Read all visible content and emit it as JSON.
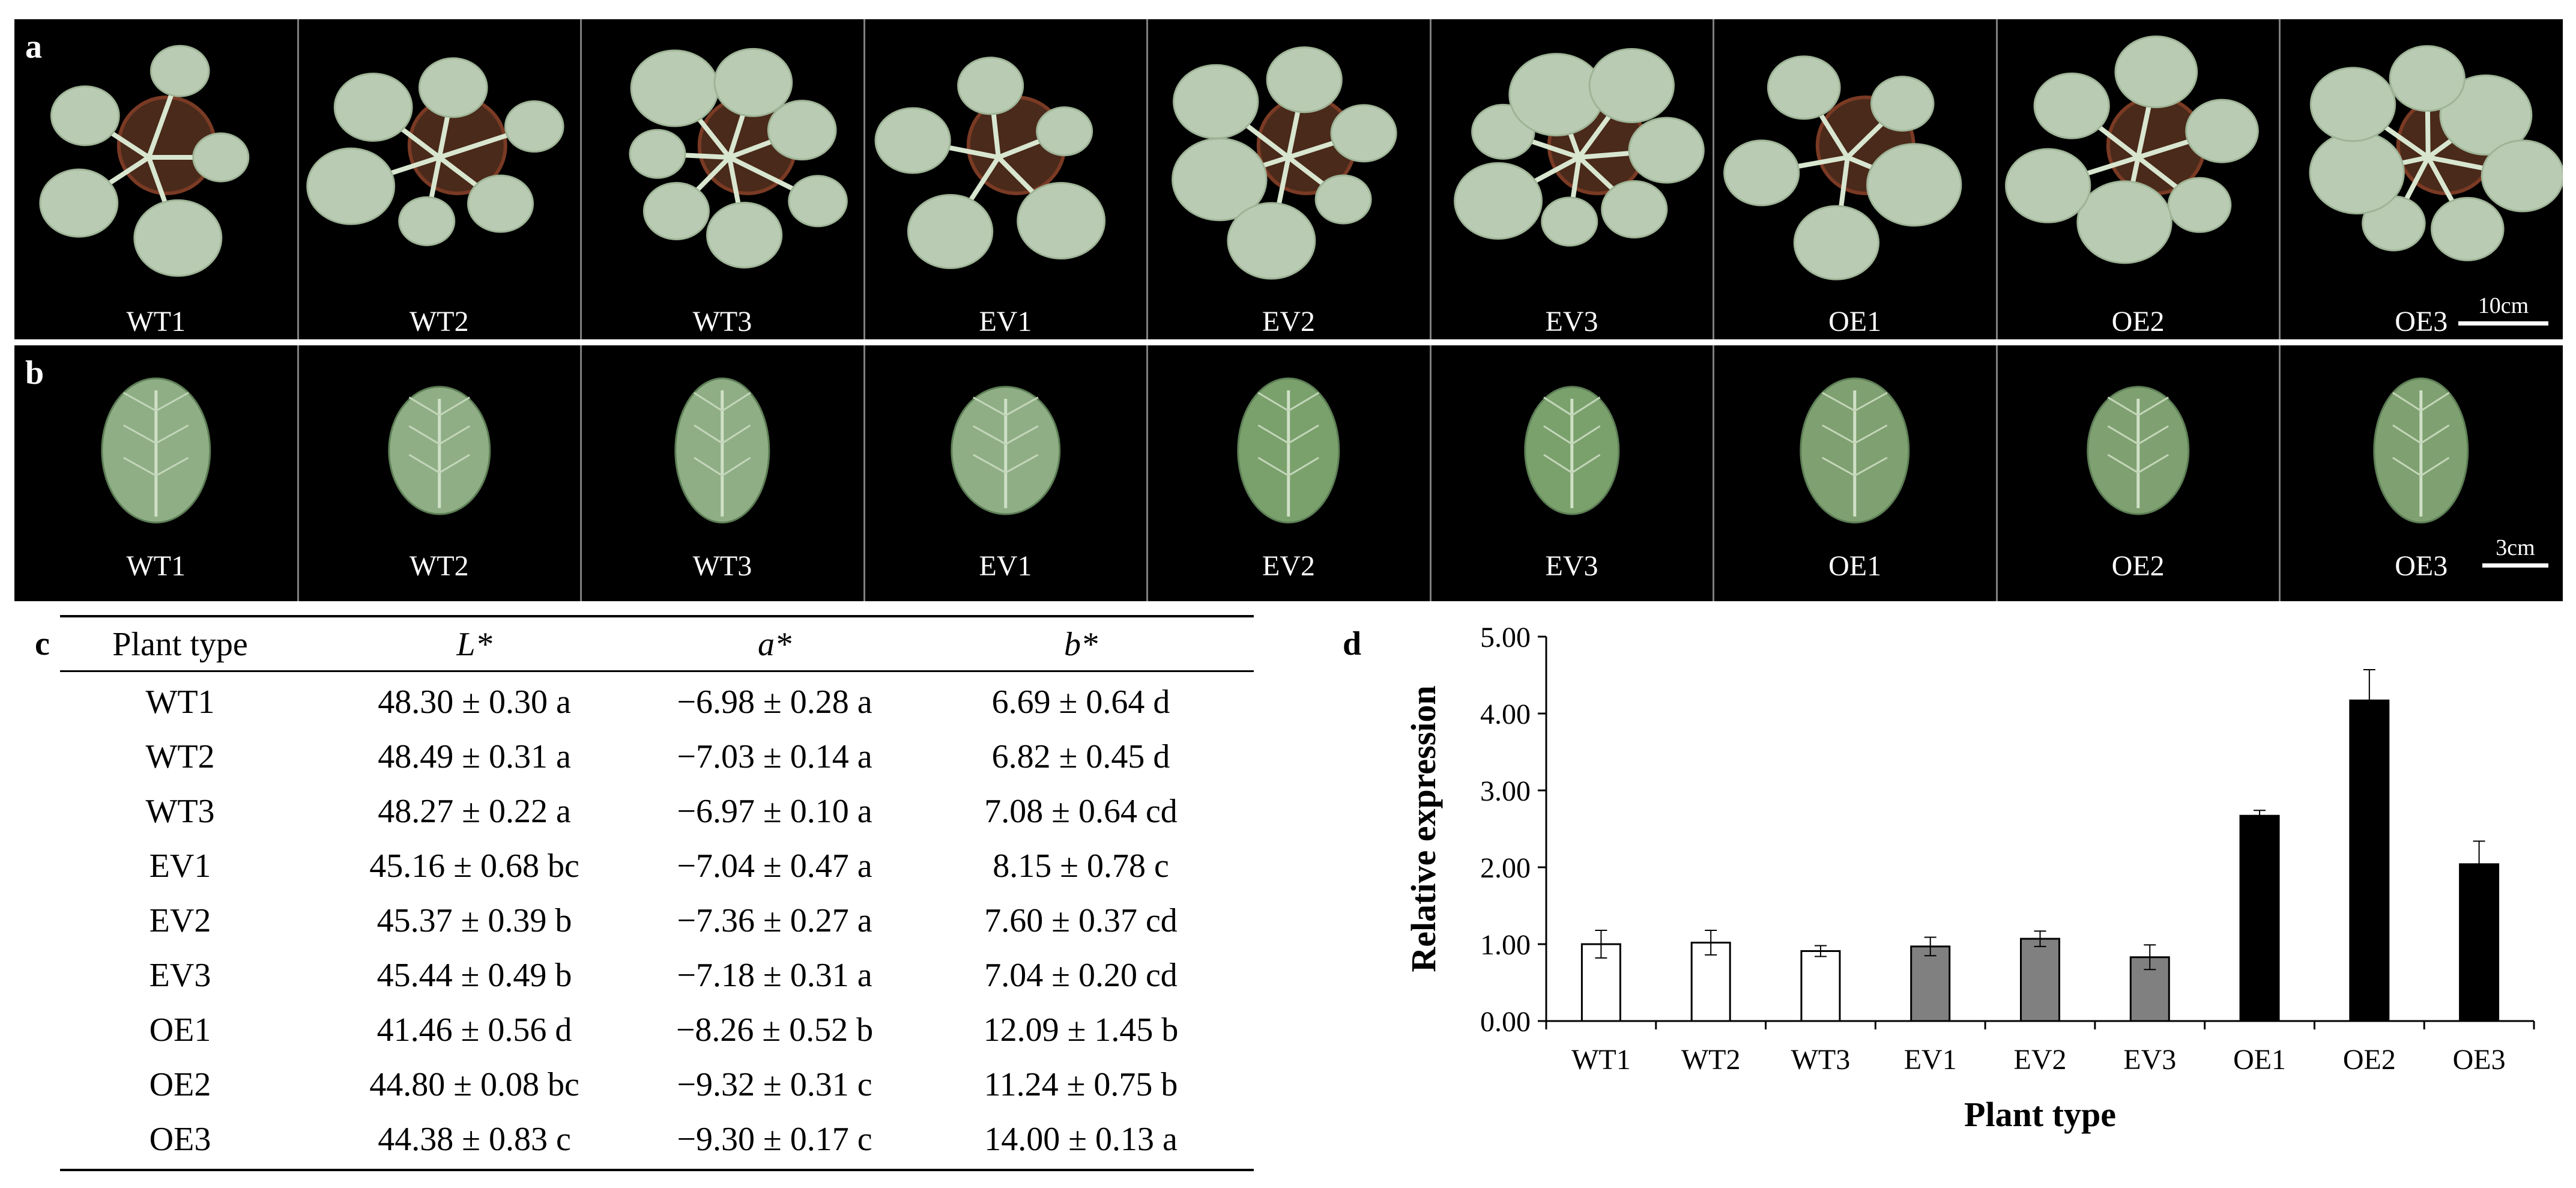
{
  "panel_letters": {
    "a": "a",
    "b": "b",
    "c": "c",
    "d": "d"
  },
  "colors": {
    "photo_background": "#000000",
    "leaf_pale": "#b9ccb3",
    "leaf_green": "#7fa070",
    "pot_soil": "#4a2a1a",
    "bar_wt": "#ffffff",
    "bar_ev": "#808080",
    "bar_oe": "#000000"
  },
  "panel_a": {
    "labels": [
      "WT1",
      "WT2",
      "WT3",
      "EV1",
      "EV2",
      "EV3",
      "OE1",
      "OE2",
      "OE3"
    ],
    "scale_bar": "10cm"
  },
  "panel_b": {
    "labels": [
      "WT1",
      "WT2",
      "WT3",
      "EV1",
      "EV2",
      "EV3",
      "OE1",
      "OE2",
      "OE3"
    ],
    "scale_bar": "3cm"
  },
  "table_c": {
    "headers": [
      "Plant type",
      "L*",
      "a*",
      "b*"
    ],
    "rows": [
      [
        "WT1",
        "48.30 ± 0.30 a",
        "−6.98 ± 0.28 a",
        "6.69 ± 0.64 d"
      ],
      [
        "WT2",
        "48.49 ± 0.31 a",
        "−7.03 ± 0.14 a",
        "6.82 ± 0.45 d"
      ],
      [
        "WT3",
        "48.27 ± 0.22 a",
        "−6.97 ± 0.10 a",
        "7.08 ± 0.64 cd"
      ],
      [
        "EV1",
        "45.16 ± 0.68 bc",
        "−7.04 ± 0.47 a",
        "8.15 ± 0.78 c"
      ],
      [
        "EV2",
        "45.37 ± 0.39 b",
        "−7.36 ± 0.27 a",
        "7.60 ± 0.37 cd"
      ],
      [
        "EV3",
        "45.44 ± 0.49 b",
        "−7.18 ± 0.31 a",
        "7.04 ± 0.20 cd"
      ],
      [
        "OE1",
        "41.46 ± 0.56 d",
        "−8.26 ± 0.52 b",
        "12.09 ± 1.45 b"
      ],
      [
        "OE2",
        "44.80 ± 0.08 bc",
        "−9.32 ± 0.31 c",
        "11.24 ± 0.75 b"
      ],
      [
        "OE3",
        "44.38 ± 0.83 c",
        "−9.30 ± 0.17 c",
        "14.00 ± 0.13 a"
      ]
    ]
  },
  "chart_data": {
    "type": "bar",
    "title": "",
    "xlabel": "Plant type",
    "ylabel": "Relative expression",
    "categories": [
      "WT1",
      "WT2",
      "WT3",
      "EV1",
      "EV2",
      "EV3",
      "OE1",
      "OE2",
      "OE3"
    ],
    "values": [
      1.0,
      1.02,
      0.91,
      0.97,
      1.07,
      0.83,
      2.67,
      4.17,
      2.04
    ],
    "errors": [
      0.18,
      0.16,
      0.07,
      0.12,
      0.1,
      0.16,
      0.07,
      0.4,
      0.3
    ],
    "groups": [
      "WT",
      "WT",
      "WT",
      "EV",
      "EV",
      "EV",
      "OE",
      "OE",
      "OE"
    ],
    "ylim": [
      0,
      5
    ],
    "yticks": [
      0,
      1,
      2,
      3,
      4,
      5
    ],
    "ytick_labels": [
      "0.00",
      "1.00",
      "2.00",
      "3.00",
      "4.00",
      "5.00"
    ],
    "grid": false,
    "legend": "none"
  }
}
